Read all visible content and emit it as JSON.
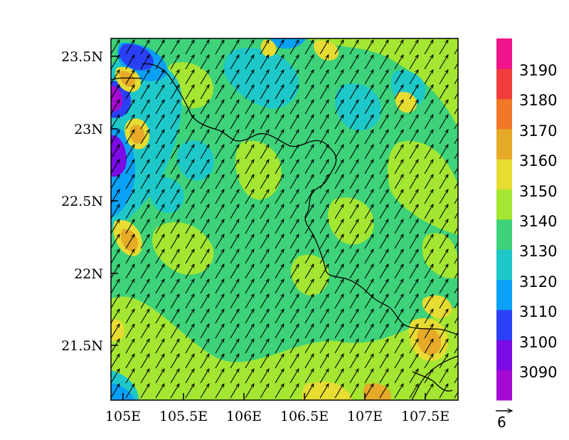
{
  "map": {
    "lon_ticks": [
      "105E",
      "105.5E",
      "106E",
      "106.5E",
      "107E",
      "107.5E"
    ],
    "lon_values": [
      105.0,
      105.5,
      106.0,
      106.5,
      107.0,
      107.5
    ],
    "lat_ticks": [
      "23.5N",
      "23N",
      "22.5N",
      "22N",
      "21.5N"
    ],
    "lat_values": [
      23.5,
      23.0,
      22.5,
      22.0,
      21.5
    ],
    "extent": {
      "lon": [
        104.9,
        107.8
      ],
      "lat": [
        21.1,
        23.6
      ]
    },
    "background_color": "#3ed27a",
    "wind_direction": "south-westerly (arrows pointing north-east)"
  },
  "colorbar": {
    "labels": [
      "3090",
      "3100",
      "3110",
      "3120",
      "3130",
      "3140",
      "3150",
      "3160",
      "3170",
      "3180",
      "3190"
    ],
    "colors": [
      "#a50ad2",
      "#7a0ae6",
      "#2a40f5",
      "#0aa0f5",
      "#1ec8c8",
      "#3ed27a",
      "#a4e632",
      "#e6dc32",
      "#e6aa28",
      "#f07828",
      "#f03c3c",
      "#f0148c"
    ]
  },
  "reference_vector": {
    "label": "6"
  }
}
